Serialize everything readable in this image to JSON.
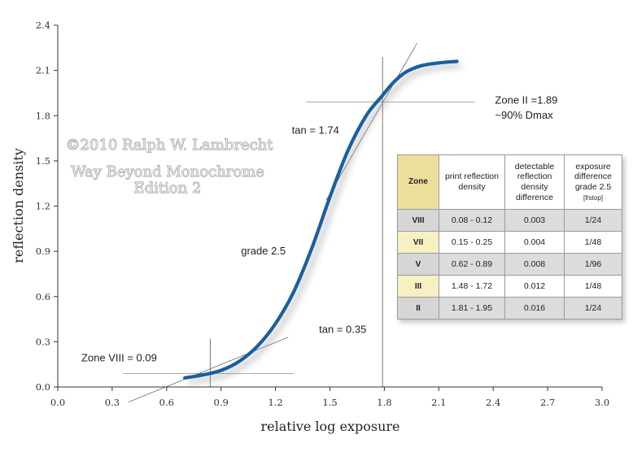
{
  "chart_data": {
    "type": "line",
    "xlabel": "relative log exposure",
    "ylabel": "reflection density",
    "xlim": [
      0.0,
      3.0
    ],
    "ylim": [
      0.0,
      2.4
    ],
    "x_ticks": [
      "0.0",
      "0.3",
      "0.6",
      "0.9",
      "1.2",
      "1.5",
      "1.8",
      "2.1",
      "2.4",
      "2.7",
      "3.0"
    ],
    "y_ticks": [
      "0.0",
      "0.3",
      "0.6",
      "0.9",
      "1.2",
      "1.5",
      "1.8",
      "2.1",
      "2.4"
    ],
    "grid": false,
    "series": [
      {
        "color": "#1a5f9e",
        "x": [
          0.7,
          0.8,
          0.9,
          1.0,
          1.1,
          1.2,
          1.3,
          1.4,
          1.5,
          1.6,
          1.7,
          1.78,
          1.85,
          1.92,
          2.0,
          2.1,
          2.2
        ],
        "y": [
          0.06,
          0.08,
          0.11,
          0.17,
          0.27,
          0.42,
          0.63,
          0.92,
          1.26,
          1.57,
          1.8,
          1.92,
          2.02,
          2.09,
          2.13,
          2.15,
          2.16
        ]
      }
    ],
    "reference_lines": {
      "horizontal": [
        {
          "y": 0.09,
          "x_from": 0.36,
          "x_to": 1.3
        },
        {
          "y": 1.89,
          "x_from": 1.37,
          "x_to": 2.3
        }
      ],
      "vertical": [
        {
          "x": 0.84,
          "y_from": 0.0,
          "y_to": 0.32
        },
        {
          "x": 1.79,
          "y_from": 0.0,
          "y_to": 2.19
        }
      ],
      "tangents": [
        {
          "x_from": 0.39,
          "y_from": -0.1,
          "x_to": 1.27,
          "y_to": 0.33
        },
        {
          "x_from": 1.48,
          "y_from": 1.24,
          "x_to": 1.98,
          "y_to": 2.28
        }
      ]
    },
    "annotations": [
      {
        "text": "Zone II =1.89",
        "x": 2.41,
        "y": 1.88
      },
      {
        "text": "~90% Dmax",
        "x": 2.41,
        "y": 1.78
      },
      {
        "text": "tan = 1.74",
        "x": 1.29,
        "y": 1.68
      },
      {
        "text": "grade 2.5",
        "x": 1.01,
        "y": 0.88
      },
      {
        "text": "tan = 0.35",
        "x": 1.44,
        "y": 0.36
      },
      {
        "text": "Zone VIII = 0.09",
        "x": 0.13,
        "y": 0.17
      }
    ],
    "watermark": [
      "©2010   Ralph W. Lambrecht",
      "Way Beyond Monochrome",
      "Edition 2"
    ]
  },
  "table": {
    "headers": {
      "zone": "Zone",
      "print": "print reflection density",
      "detectable": "detectable reflection density difference",
      "exposure": "exposure difference grade 2.5",
      "exposure_unit": "[f/stop]"
    },
    "rows": [
      {
        "zone": "VIII",
        "density": "0.08 - 0.12",
        "diff": "0.003",
        "exposure": "1/24"
      },
      {
        "zone": "VII",
        "density": "0.15 - 0.25",
        "diff": "0.004",
        "exposure": "1/48"
      },
      {
        "zone": "V",
        "density": "0.62 - 0.89",
        "diff": "0.008",
        "exposure": "1/96"
      },
      {
        "zone": "III",
        "density": "1.48 - 1.72",
        "diff": "0.012",
        "exposure": "1/48"
      },
      {
        "zone": "II",
        "density": "1.81 - 1.95",
        "diff": "0.016",
        "exposure": "1/24"
      }
    ]
  }
}
